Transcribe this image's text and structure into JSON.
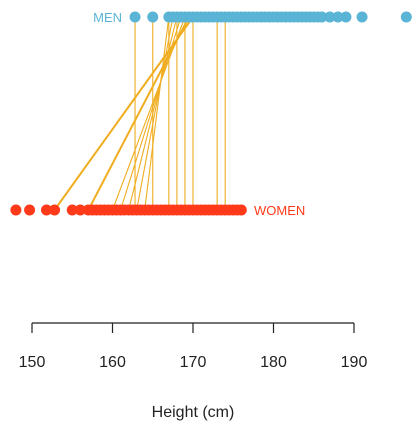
{
  "chart_data": {
    "type": "scatter",
    "xlabel": "Height (cm)",
    "xlim": [
      147,
      197
    ],
    "x_ticks": [
      150,
      160,
      170,
      180,
      190
    ],
    "groups": [
      {
        "name": "MEN",
        "color": "#5ab4d6",
        "values": [
          162.8,
          165.0,
          167.0,
          167.5,
          168.0,
          168.5,
          169.0,
          169.5,
          170.0,
          170.5,
          171.0,
          171.5,
          172.0,
          172.5,
          173.0,
          173.5,
          174.0,
          174.5,
          175.0,
          175.5,
          176.0,
          176.5,
          177.0,
          177.5,
          178.0,
          178.5,
          179.0,
          179.5,
          180.0,
          180.5,
          181.0,
          181.5,
          182.0,
          182.5,
          183.0,
          183.5,
          184.0,
          184.5,
          185.0,
          185.5,
          186.0,
          187.0,
          188.0,
          189.0,
          191.0,
          196.5
        ]
      },
      {
        "name": "WOMEN",
        "color": "#ff3a1a",
        "values": [
          148.0,
          149.7,
          151.8,
          152.8,
          155.0,
          156.0,
          157.0,
          157.5,
          158.0,
          158.5,
          159.0,
          159.5,
          160.0,
          160.5,
          161.0,
          161.5,
          162.0,
          162.5,
          163.0,
          163.5,
          164.0,
          164.5,
          165.0,
          165.5,
          166.0,
          166.5,
          167.0,
          167.5,
          168.0,
          168.5,
          169.0,
          169.5,
          170.0,
          170.5,
          171.0,
          171.5,
          172.0,
          172.5,
          173.0,
          173.5,
          174.0,
          174.5,
          175.0,
          175.5,
          176.0
        ]
      }
    ],
    "link_color": "#f0ad20",
    "links": [
      {
        "man": 170.0,
        "woman": 152.8
      },
      {
        "man": 169.5,
        "woman": 157.0
      },
      {
        "man": 169.0,
        "woman": 160.0
      },
      {
        "man": 168.5,
        "woman": 161.0
      },
      {
        "man": 168.0,
        "woman": 162.0
      },
      {
        "man": 167.5,
        "woman": 163.0
      },
      {
        "man": 167.0,
        "woman": 164.0
      },
      {
        "man": 162.8,
        "woman": 162.8
      },
      {
        "man": 165.0,
        "woman": 165.0
      },
      {
        "man": 167.0,
        "woman": 167.0
      },
      {
        "man": 168.0,
        "woman": 168.0
      },
      {
        "man": 169.0,
        "woman": 169.0
      },
      {
        "man": 170.0,
        "woman": 170.0
      },
      {
        "man": 173.0,
        "woman": 173.0
      },
      {
        "man": 174.0,
        "woman": 174.0
      }
    ],
    "grid": false,
    "legend": "inline labels"
  }
}
